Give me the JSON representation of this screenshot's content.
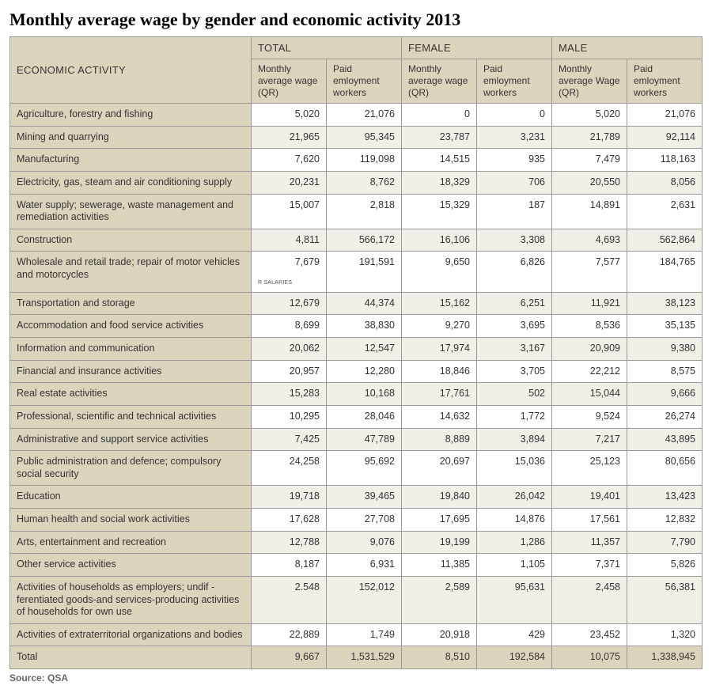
{
  "title": "Monthly average wage by gender and economic activity 2013",
  "source": "Source: QSA",
  "headers": {
    "econ": "ECONOMIC ACTIVITY",
    "groups": [
      "TOTAL",
      "FEMALE",
      "MALE"
    ],
    "subs": {
      "total_wage": "Monthly average wage (QR)",
      "total_workers": "Paid emloyment workers",
      "female_wage": "Monthly average wage (QR)",
      "female_workers": "Paid emloyment workers",
      "male_wage": "Monthly average Wage (QR)",
      "male_workers": "Paid emloyment workers"
    }
  },
  "artifact_text": "R SALARIES",
  "rows": [
    {
      "label": "Agriculture, forestry and fishing",
      "v": [
        "5,020",
        "21,076",
        "0",
        "0",
        "5,020",
        "21,076"
      ]
    },
    {
      "label": "Mining and quarrying",
      "v": [
        "21,965",
        "95,345",
        "23,787",
        "3,231",
        "21,789",
        "92,114"
      ]
    },
    {
      "label": "Manufacturing",
      "v": [
        "7,620",
        "119,098",
        "14,515",
        "935",
        "7,479",
        "118,163"
      ]
    },
    {
      "label": "Electricity, gas, steam and air conditioning supply",
      "v": [
        "20,231",
        "8,762",
        "18,329",
        "706",
        "20,550",
        "8,056"
      ]
    },
    {
      "label": "Water supply; sewerage, waste management and remediation activities",
      "v": [
        "15,007",
        "2,818",
        "15,329",
        "187",
        "14,891",
        "2,631"
      ]
    },
    {
      "label": "Construction",
      "v": [
        "4,811",
        "566,172",
        "16,106",
        "3,308",
        "4,693",
        "562,864"
      ]
    },
    {
      "label": "Wholesale and retail trade; repair of motor vehicles and motorcycles",
      "v": [
        "7,679",
        "191,591",
        "9,650",
        "6,826",
        "7,577",
        "184,765"
      ]
    },
    {
      "label": "Transportation and storage",
      "v": [
        "12,679",
        "44,374",
        "15,162",
        "6,251",
        "11,921",
        "38,123"
      ]
    },
    {
      "label": "Accommodation and food service activities",
      "v": [
        "8,699",
        "38,830",
        "9,270",
        "3,695",
        "8,536",
        "35,135"
      ]
    },
    {
      "label": "Information and communication",
      "v": [
        "20,062",
        "12,547",
        "17,974",
        "3,167",
        "20,909",
        "9,380"
      ]
    },
    {
      "label": "Financial and insurance activities",
      "v": [
        "20,957",
        "12,280",
        "18,846",
        "3,705",
        "22,212",
        "8,575"
      ]
    },
    {
      "label": "Real estate activities",
      "v": [
        "15,283",
        "10,168",
        "17,761",
        "502",
        "15,044",
        "9,666"
      ]
    },
    {
      "label": "Professional, scientific and technical activities",
      "v": [
        "10,295",
        "28,046",
        "14,632",
        "1,772",
        "9,524",
        "26,274"
      ]
    },
    {
      "label": "Administrative and support service activities",
      "v": [
        "7,425",
        "47,789",
        "8,889",
        "3,894",
        "7,217",
        "43,895"
      ]
    },
    {
      "label": "Public administration and defence; compulsory social security",
      "v": [
        "24,258",
        "95,692",
        "20,697",
        "15,036",
        "25,123",
        "80,656"
      ]
    },
    {
      "label": "Education",
      "v": [
        "19,718",
        "39,465",
        "19,840",
        "26,042",
        "19,401",
        "13,423"
      ]
    },
    {
      "label": "Human health and social work activities",
      "v": [
        "17,628",
        "27,708",
        "17,695",
        "14,876",
        "17,561",
        "12,832"
      ]
    },
    {
      "label": "Arts, entertainment and recreation",
      "v": [
        "12,788",
        "9,076",
        "19,199",
        "1,286",
        "11,357",
        "7,790"
      ]
    },
    {
      "label": "Other service activities",
      "v": [
        "8,187",
        "6,931",
        "11,385",
        "1,105",
        "7,371",
        "5,826"
      ]
    },
    {
      "label": "Activities of households as employers; undif      - ferentiated goods-and services-producing activities of households for own use",
      "v": [
        "2.548",
        "152,012",
        "2,589",
        "95,631",
        "2,458",
        "56,381"
      ]
    },
    {
      "label": "Activities of extraterritorial organizations and bodies",
      "v": [
        "22,889",
        "1,749",
        "20,918",
        "429",
        "23,452",
        "1,320"
      ]
    }
  ],
  "total_row": {
    "label": "Total",
    "v": [
      "9,667",
      "1,531,529",
      "8,510",
      "192,584",
      "10,075",
      "1,338,945"
    ]
  },
  "style": {
    "header_bg": "#dcd5be",
    "alt_bg": "#f1efe7",
    "reg_bg": "#ffffff",
    "border": "#999999",
    "text": "#333333",
    "title_font": "Georgia, serif",
    "body_font": "Arial, sans-serif",
    "title_fontsize": 22,
    "body_fontsize": 12.5
  }
}
